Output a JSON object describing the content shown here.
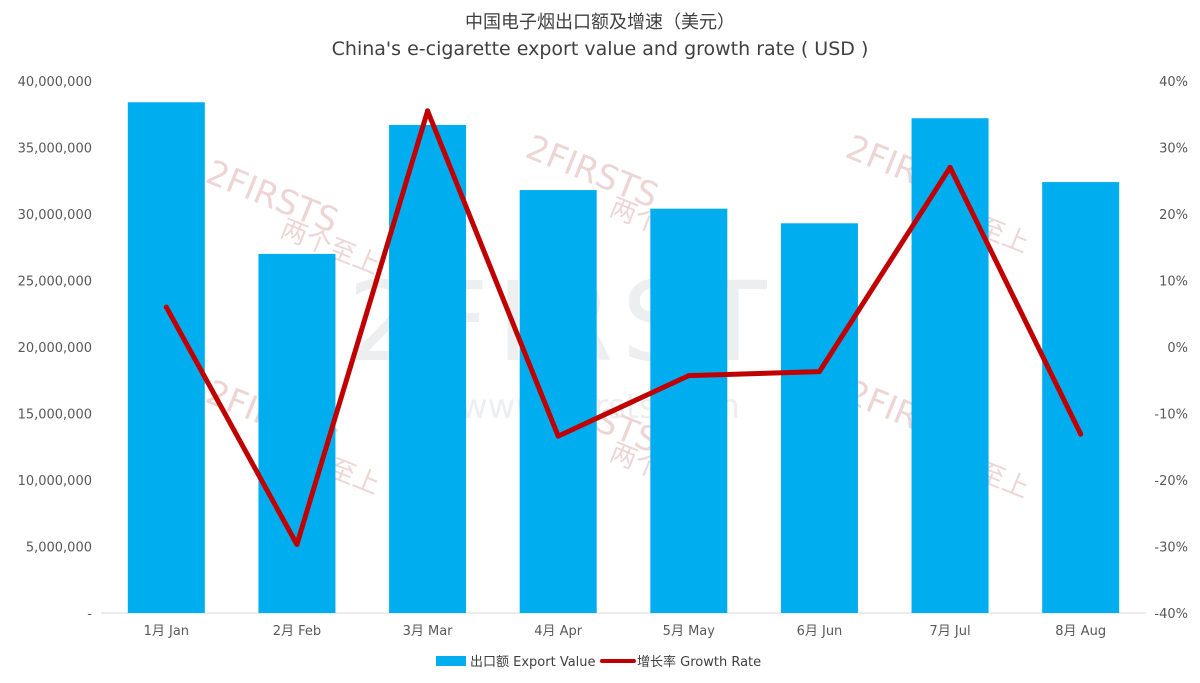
{
  "chart_data": {
    "type": "bar",
    "title": "中国电子烟出口额及增速（美元）",
    "subtitle": "China's e-cigarette export value and growth rate ( USD )",
    "categories": [
      "1月 Jan",
      "2月 Feb",
      "3月 Mar",
      "4月 Apr",
      "5月 May",
      "6月 Jun",
      "7月 Jul",
      "8月 Aug"
    ],
    "series": [
      {
        "name": "出口额 Export Value",
        "type": "bar",
        "axis": "left",
        "color": "#00aeef",
        "values": [
          38400000,
          27000000,
          36700000,
          31800000,
          30400000,
          29300000,
          37200000,
          32400000
        ]
      },
      {
        "name": "增长率 Growth Rate",
        "type": "line",
        "axis": "right",
        "color": "#c00000",
        "values": [
          6,
          -29.7,
          35.5,
          -13.4,
          -4.3,
          -3.7,
          27,
          -13.1
        ]
      }
    ],
    "left_axis": {
      "min": 0,
      "max": 40000000,
      "ticks": [
        "-",
        "5,000,000",
        "10,000,000",
        "15,000,000",
        "20,000,000",
        "25,000,000",
        "30,000,000",
        "35,000,000",
        "40,000,000"
      ]
    },
    "right_axis": {
      "min": -40,
      "max": 40,
      "ticks": [
        "-40%",
        "-30%",
        "-20%",
        "-10%",
        "0%",
        "10%",
        "20%",
        "30%",
        "40%"
      ]
    },
    "grid": false,
    "legend_position": "bottom"
  },
  "watermark": {
    "brand": "2FIRSTS",
    "brand_cn": "两个至上",
    "url": "www.2firsts.com"
  }
}
